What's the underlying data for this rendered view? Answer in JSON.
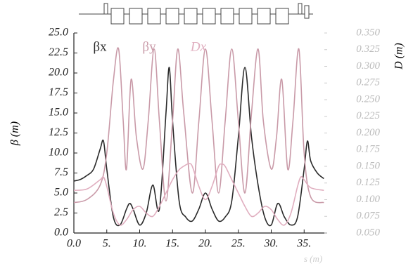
{
  "chart_data": {
    "type": "line",
    "y_label": "β (m)",
    "y2_label": "D (m)",
    "x_label": "s (m)",
    "xlim": [
      0,
      38.5
    ],
    "xticks": [
      {
        "value": 0,
        "label": "0.0"
      },
      {
        "value": 5,
        "label": "5."
      },
      {
        "value": 10,
        "label": "10."
      },
      {
        "value": 15,
        "label": "15."
      },
      {
        "value": 20,
        "label": "20."
      },
      {
        "value": 25,
        "label": "25."
      },
      {
        "value": 30,
        "label": "30."
      },
      {
        "value": 35,
        "label": "35."
      }
    ],
    "ylim": [
      0,
      25
    ],
    "yticks": [
      {
        "value": 0,
        "label": "0.0"
      },
      2.5,
      {
        "value": 5,
        "label": "5.0"
      },
      7.5,
      {
        "value": 10,
        "label": "10.0"
      },
      12.5,
      {
        "value": 15,
        "label": "15.0"
      },
      17.5,
      {
        "value": 20,
        "label": "20.0"
      },
      22.5,
      {
        "value": 25,
        "label": "25.0"
      }
    ],
    "y2lim": [
      0.05,
      0.35
    ],
    "y2ticks": [
      {
        "value": 0.05,
        "label": "0.050"
      },
      0.075,
      {
        "value": 0.1,
        "label": "0.100"
      },
      0.125,
      {
        "value": 0.15,
        "label": "0.150"
      },
      0.175,
      {
        "value": 0.2,
        "label": "0.200"
      },
      0.225,
      {
        "value": 0.25,
        "label": "0.250"
      },
      0.275,
      {
        "value": 0.3,
        "label": "0.300"
      },
      0.325,
      {
        "value": 0.35,
        "label": "0.350"
      }
    ],
    "series": [
      {
        "name": "βx",
        "color": "#2a2a2a",
        "x": [
          0,
          1,
          2,
          3,
          4,
          4.5,
          5,
          6,
          7,
          8,
          8.5,
          9,
          10,
          11,
          12,
          13,
          14,
          14.5,
          15,
          16,
          17,
          18,
          19,
          20,
          21,
          22,
          23,
          24,
          25,
          26,
          27,
          28,
          29,
          30,
          31,
          32,
          33,
          34,
          35,
          35.5,
          36,
          37,
          38
        ],
        "values": [
          6.5,
          6.7,
          7.2,
          8,
          10.5,
          11.5,
          8,
          2,
          1,
          3,
          3.7,
          3,
          1,
          2.5,
          6,
          3,
          15,
          20.7,
          14,
          4,
          2,
          1.5,
          3,
          5,
          3,
          1.5,
          2,
          4,
          12,
          20.7,
          12,
          6,
          2,
          1,
          3.7,
          2,
          1,
          2,
          8,
          11.5,
          9,
          7.5,
          6.8
        ]
      },
      {
        "name": "βy",
        "color": "#c99aa8",
        "x": [
          0,
          2,
          4,
          5,
          6,
          6.8,
          7.5,
          8,
          8.7,
          9.5,
          10.5,
          11.3,
          12.2,
          13,
          14,
          15,
          15.8,
          16.7,
          18,
          19,
          20,
          21,
          22,
          23,
          24,
          25,
          26,
          27,
          28,
          28.8,
          30,
          30.8,
          31.6,
          32.5,
          33.3,
          34.2,
          35,
          36,
          38
        ],
        "values": [
          3.8,
          4.2,
          6,
          10,
          19,
          23,
          14,
          8,
          19.2,
          12,
          8,
          14,
          23,
          14,
          4,
          14,
          23,
          15,
          5,
          14,
          23,
          14,
          5,
          14,
          23,
          14,
          5,
          15,
          23,
          14,
          8,
          12,
          19.2,
          8,
          14,
          23,
          10,
          4.5,
          3.8
        ]
      },
      {
        "name": "Dx",
        "color": "#e0aebf",
        "axis": "y2",
        "x": [
          0,
          2,
          4,
          4.5,
          5,
          6,
          7,
          8,
          9,
          10,
          11,
          12,
          13,
          14,
          15,
          16,
          17,
          17.5,
          18,
          19,
          20,
          21,
          22,
          22.5,
          23,
          24,
          25,
          26,
          27,
          28,
          29,
          30,
          31,
          32,
          33,
          34,
          34.5,
          35,
          36,
          38
        ],
        "values": [
          0.114,
          0.116,
          0.13,
          0.134,
          0.12,
          0.08,
          0.062,
          0.07,
          0.085,
          0.09,
          0.08,
          0.075,
          0.09,
          0.11,
          0.13,
          0.145,
          0.152,
          0.154,
          0.15,
          0.12,
          0.1,
          0.12,
          0.15,
          0.153,
          0.15,
          0.13,
          0.11,
          0.09,
          0.075,
          0.08,
          0.09,
          0.085,
          0.07,
          0.062,
          0.08,
          0.12,
          0.134,
          0.13,
          0.118,
          0.114
        ]
      }
    ]
  }
}
